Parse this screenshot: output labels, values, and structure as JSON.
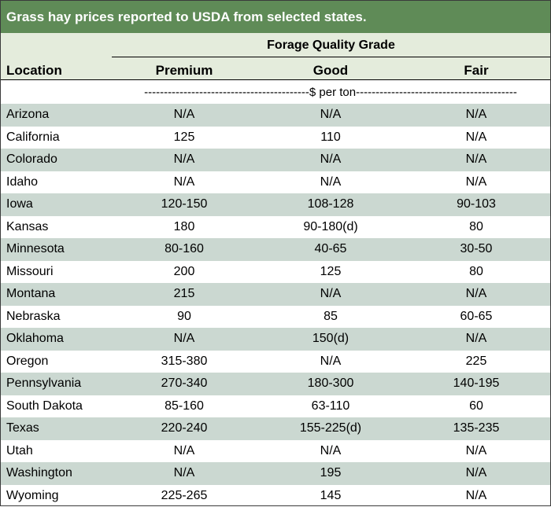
{
  "title": "Grass hay prices reported to USDA from selected states.",
  "header": {
    "group_label": "Forage Quality Grade",
    "location": "Location",
    "premium": "Premium",
    "good": "Good",
    "fair": "Fair",
    "units": "------------------------------------------$ per ton-----------------------------------------"
  },
  "rows": [
    {
      "location": "Arizona",
      "premium": "N/A",
      "good": "N/A",
      "fair": "N/A"
    },
    {
      "location": "California",
      "premium": "125",
      "good": "110",
      "fair": "N/A"
    },
    {
      "location": "Colorado",
      "premium": "N/A",
      "good": "N/A",
      "fair": "N/A"
    },
    {
      "location": "Idaho",
      "premium": "N/A",
      "good": "N/A",
      "fair": "N/A"
    },
    {
      "location": "Iowa",
      "premium": "120-150",
      "good": "108-128",
      "fair": "90-103"
    },
    {
      "location": "Kansas",
      "premium": "180",
      "good": "90-180(d)",
      "fair": "80"
    },
    {
      "location": "Minnesota",
      "premium": "80-160",
      "good": "40-65",
      "fair": "30-50"
    },
    {
      "location": "Missouri",
      "premium": "200",
      "good": "125",
      "fair": "80"
    },
    {
      "location": "Montana",
      "premium": "215",
      "good": "N/A",
      "fair": "N/A"
    },
    {
      "location": "Nebraska",
      "premium": "90",
      "good": "85",
      "fair": "60-65"
    },
    {
      "location": "Oklahoma",
      "premium": "N/A",
      "good": "150(d)",
      "fair": "N/A"
    },
    {
      "location": "Oregon",
      "premium": "315-380",
      "good": "N/A",
      "fair": "225"
    },
    {
      "location": "Pennsylvania",
      "premium": "270-340",
      "good": "180-300",
      "fair": "140-195"
    },
    {
      "location": "South Dakota",
      "premium": "85-160",
      "good": "63-110",
      "fair": "60"
    },
    {
      "location": "Texas",
      "premium": "220-240",
      "good": "155-225(d)",
      "fair": "135-235"
    },
    {
      "location": "Utah",
      "premium": "N/A",
      "good": "N/A",
      "fair": "N/A"
    },
    {
      "location": "Washington",
      "premium": "N/A",
      "good": "195",
      "fair": "N/A"
    },
    {
      "location": "Wyoming",
      "premium": "225-265",
      "good": "145",
      "fair": "N/A"
    }
  ]
}
